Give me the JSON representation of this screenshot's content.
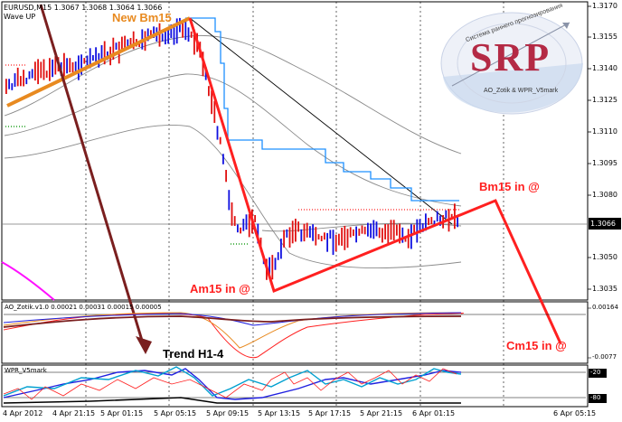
{
  "header": {
    "symbol_info": "EURUSD,M15  1.3067 1.3068 1.3064 1.3066",
    "indicator": "Wave UP"
  },
  "price_axis": {
    "labels": [
      "1.3170",
      "1.3155",
      "1.3140",
      "1.3125",
      "1.3110",
      "1.3095",
      "1.3080",
      "1.3066",
      "1.3050",
      "1.3035"
    ],
    "current": "1.3066"
  },
  "time_axis": {
    "labels": [
      "4 Apr 2012",
      "4 Apr 21:15",
      "5 Apr 01:15",
      "5 Apr 05:15",
      "5 Apr 09:15",
      "5 Apr 13:15",
      "5 Apr 17:15",
      "5 Apr 21:15",
      "6 Apr 01:15",
      "6 Apr 05:15"
    ]
  },
  "annotations": {
    "new_bm15": "New Bm15",
    "bm15_in": "Bm15 in @",
    "am15_in": "Am15 in @",
    "cm15_in": "Cm15 in @",
    "trend": "Trend H1-4"
  },
  "oscillator1": {
    "label": "AO_Zotik.v1.0  0.00021 0.00031 0.00015 0.00005",
    "axis_labels": [
      "0.00164",
      "-0.0077"
    ]
  },
  "oscillator2": {
    "label": "WPR_V5mark",
    "axis_labels": [
      "-20",
      "-80"
    ]
  },
  "logo": {
    "text": "SRP",
    "arc_text": "Система раннего прогнозирования",
    "caption": "AO_Zotik & WPR_V5mark"
  },
  "colors": {
    "bull": "#1010e0",
    "bear": "#e01010",
    "annotation": "#ff2020",
    "trend_arrow": "#7a1f1f",
    "new_bm15": "#e88a20",
    "wave_line": "#1e90ff"
  }
}
